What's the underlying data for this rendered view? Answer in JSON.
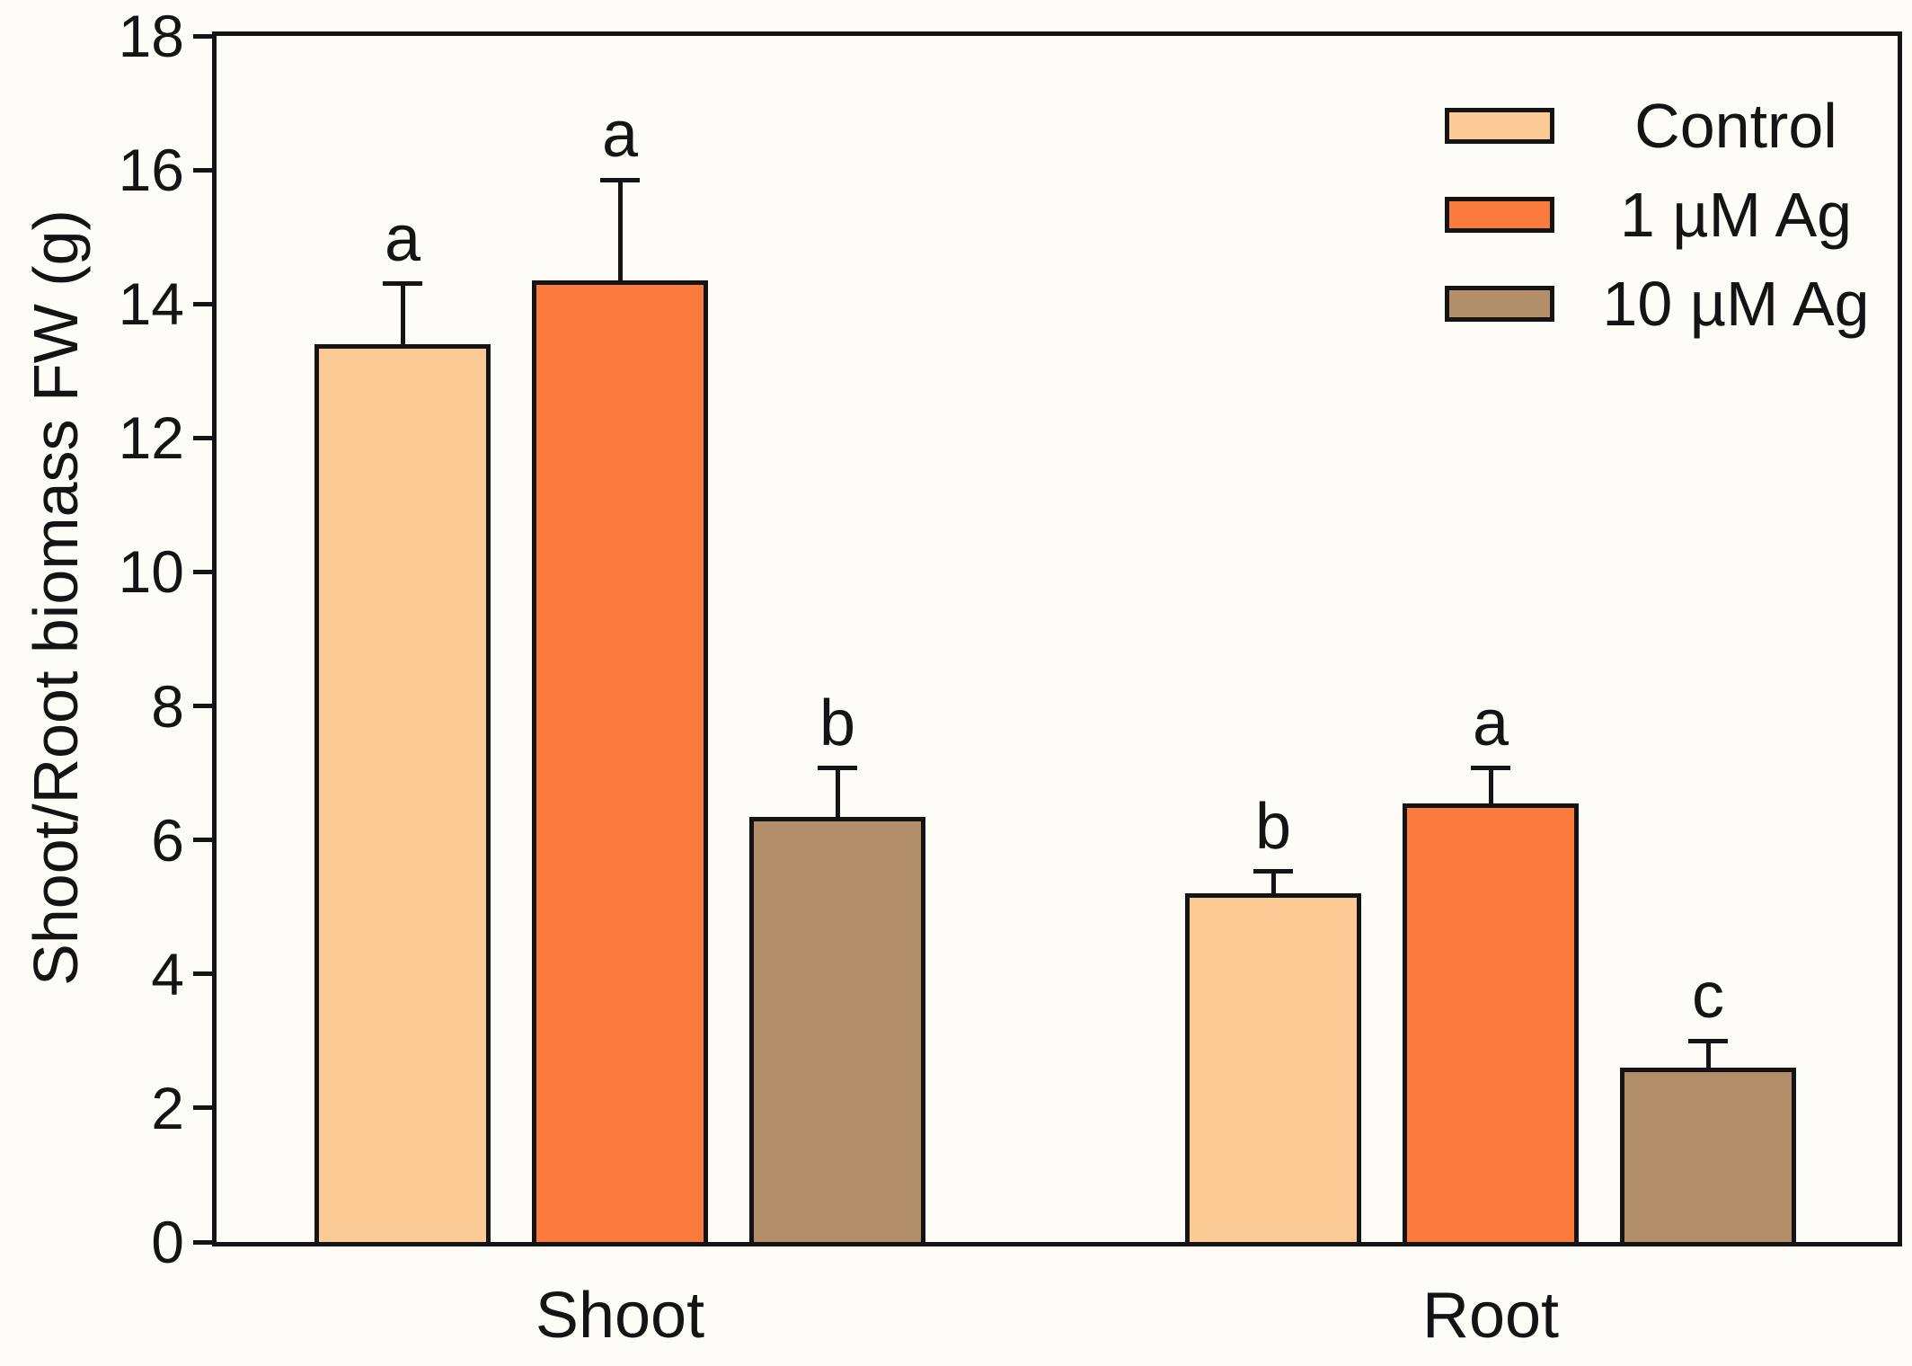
{
  "chart_data": {
    "type": "bar",
    "title": "",
    "xlabel": "",
    "ylabel": "Shoot/Root biomass FW (g)",
    "ylim": [
      0,
      18
    ],
    "ytick_step": 2,
    "yticks": [
      "0",
      "2",
      "4",
      "6",
      "8",
      "10",
      "12",
      "14",
      "16",
      "18"
    ],
    "categories": [
      "Shoot",
      "Root"
    ],
    "series": [
      {
        "name": "Control",
        "color": "#fbca95",
        "values": [
          13.4,
          5.2
        ],
        "errors": [
          0.9,
          0.33
        ],
        "letters": [
          "a",
          "b"
        ]
      },
      {
        "name": "1 µM Ag",
        "color": "#fb7b3c",
        "values": [
          14.35,
          6.55
        ],
        "errors": [
          1.5,
          0.52
        ],
        "letters": [
          "a",
          "a"
        ]
      },
      {
        "name": "10 µM Ag",
        "color": "#b28e6b",
        "values": [
          6.35,
          2.6
        ],
        "errors": [
          0.72,
          0.4
        ],
        "letters": [
          "b",
          "c"
        ]
      }
    ],
    "error_bars": "upper-only",
    "grid": false,
    "legend_position": "top-right",
    "frame": "full-box",
    "colors": {
      "axis": "#141414",
      "background": "#fdfcf7"
    }
  }
}
